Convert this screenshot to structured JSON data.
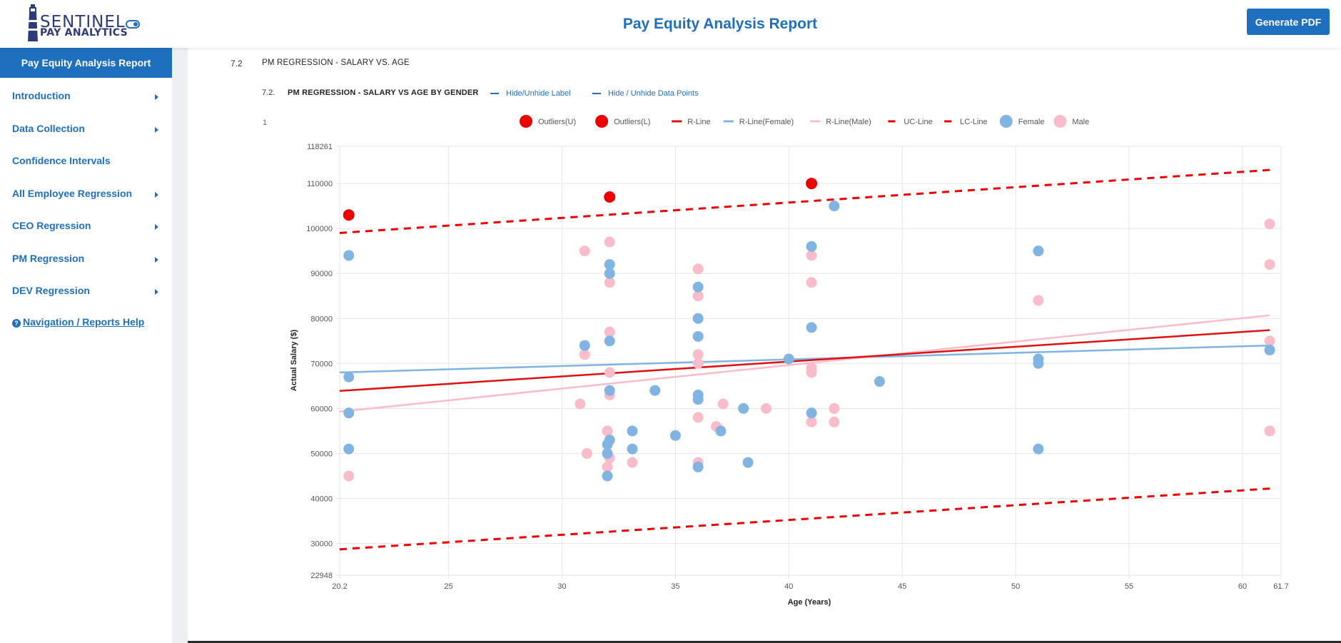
{
  "header": {
    "logo_top": "SENTINEL",
    "logo_bottom": "PAY ANALYTICS",
    "title": "Pay Equity Analysis Report",
    "pdf_button": "Generate PDF"
  },
  "sidebar": {
    "header": "Pay Equity Analysis Report",
    "items": [
      {
        "label": "Introduction",
        "caret": true
      },
      {
        "label": "Data Collection",
        "caret": true
      },
      {
        "label": "Confidence Intervals",
        "caret": false
      },
      {
        "label": "All Employee Regression",
        "caret": true
      },
      {
        "label": "CEO Regression",
        "caret": true
      },
      {
        "label": "PM Regression",
        "caret": true
      },
      {
        "label": "DEV Regression",
        "caret": true
      }
    ],
    "help": "Navigation / Reports Help"
  },
  "section": {
    "number": "7.2",
    "title": "PM REGRESSION - SALARY VS. AGE",
    "sub_number": "7.2.",
    "sub_title": "PM REGRESSION - SALARY VS AGE BY GENDER",
    "hide_label": "Hide/Unhide Label",
    "hide_points": "Hide / Unhide Data Points",
    "figure_number": "1"
  },
  "colors": {
    "accent": "#1f6fbf",
    "outlier": "#ee0000",
    "r_line": "#e01010",
    "female": "#7fb4e3",
    "male": "#f9bccb"
  },
  "chart_data": {
    "type": "scatter",
    "xlabel": "Age (Years)",
    "ylabel": "Actual Salary ($)",
    "xlim": [
      20.2,
      61.7
    ],
    "ylim": [
      22948,
      118261
    ],
    "xticks": [
      {
        "v": 20.2,
        "label": "20.2"
      },
      {
        "v": 25,
        "label": "25"
      },
      {
        "v": 30,
        "label": "30"
      },
      {
        "v": 35,
        "label": "35"
      },
      {
        "v": 40,
        "label": "40"
      },
      {
        "v": 45,
        "label": "45"
      },
      {
        "v": 50,
        "label": "50"
      },
      {
        "v": 55,
        "label": "55"
      },
      {
        "v": 60,
        "label": "60"
      },
      {
        "v": 61.7,
        "label": "61.7"
      }
    ],
    "yticks": [
      {
        "v": 22948,
        "label": "22948"
      },
      {
        "v": 30000,
        "label": "30000"
      },
      {
        "v": 40000,
        "label": "40000"
      },
      {
        "v": 50000,
        "label": "50000"
      },
      {
        "v": 60000,
        "label": "60000"
      },
      {
        "v": 70000,
        "label": "70000"
      },
      {
        "v": 80000,
        "label": "80000"
      },
      {
        "v": 90000,
        "label": "90000"
      },
      {
        "v": 100000,
        "label": "100000"
      },
      {
        "v": 110000,
        "label": "110000"
      },
      {
        "v": 118261,
        "label": "118261"
      }
    ],
    "grid": true,
    "legend_position": "top",
    "legend": [
      {
        "label": "Outliers(U)",
        "kind": "dot",
        "color": "#ee0000"
      },
      {
        "label": "Outliers(L)",
        "kind": "dot",
        "color": "#ee0000"
      },
      {
        "label": "R-Line",
        "kind": "line",
        "color": "#e01010"
      },
      {
        "label": "R-Line(Female)",
        "kind": "line",
        "color": "#7fb4e3"
      },
      {
        "label": "R-Line(Male)",
        "kind": "line",
        "color": "#f9bccb"
      },
      {
        "label": "UC-Line",
        "kind": "dash",
        "color": "#ee0000"
      },
      {
        "label": "LC-Line",
        "kind": "dash",
        "color": "#ee0000"
      },
      {
        "label": "Female",
        "kind": "dot",
        "color": "#7fb4e3"
      },
      {
        "label": "Male",
        "kind": "dot",
        "color": "#f9bccb"
      }
    ],
    "lines": [
      {
        "name": "UC-Line",
        "color": "#ee0000",
        "dashed": true,
        "width": 3,
        "x": [
          20.2,
          61.2
        ],
        "y": [
          99000,
          113000
        ]
      },
      {
        "name": "LC-Line",
        "color": "#ee0000",
        "dashed": true,
        "width": 3,
        "x": [
          20.2,
          61.2
        ],
        "y": [
          28700,
          42200
        ]
      },
      {
        "name": "R-Line(Female)",
        "color": "#7fb4e3",
        "dashed": false,
        "width": 2.5,
        "x": [
          20.2,
          61.2
        ],
        "y": [
          68000,
          74000
        ]
      },
      {
        "name": "R-Line(Male)",
        "color": "#f9bccb",
        "dashed": false,
        "width": 2.5,
        "x": [
          20.2,
          61.2
        ],
        "y": [
          59300,
          80700
        ]
      },
      {
        "name": "R-Line",
        "color": "#e01010",
        "dashed": false,
        "width": 2.5,
        "x": [
          20.2,
          61.2
        ],
        "y": [
          63900,
          77400
        ]
      }
    ],
    "series": [
      {
        "name": "Male",
        "color": "#f9bccb",
        "points": [
          [
            20.6,
            45000
          ],
          [
            31,
            95000
          ],
          [
            31,
            72000
          ],
          [
            30.8,
            61000
          ],
          [
            31.1,
            50000
          ],
          [
            32.1,
            97000
          ],
          [
            32.1,
            88000
          ],
          [
            32.1,
            77000
          ],
          [
            32.1,
            68000
          ],
          [
            32.1,
            63000
          ],
          [
            32,
            55000
          ],
          [
            32.1,
            49000
          ],
          [
            32,
            47000
          ],
          [
            33.1,
            48000
          ],
          [
            36,
            91000
          ],
          [
            36,
            85000
          ],
          [
            36,
            72000
          ],
          [
            36,
            70000
          ],
          [
            36,
            58000
          ],
          [
            36,
            48000
          ],
          [
            36.8,
            56000
          ],
          [
            37.1,
            61000
          ],
          [
            39,
            60000
          ],
          [
            41,
            94000
          ],
          [
            41,
            88000
          ],
          [
            41,
            69000
          ],
          [
            41,
            68000
          ],
          [
            41,
            57000
          ],
          [
            42,
            60000
          ],
          [
            42,
            57000
          ],
          [
            51,
            84000
          ],
          [
            61.2,
            101000
          ],
          [
            61.2,
            92000
          ],
          [
            61.2,
            75000
          ],
          [
            61.2,
            55000
          ]
        ]
      },
      {
        "name": "Female",
        "color": "#7fb4e3",
        "points": [
          [
            20.6,
            94000
          ],
          [
            20.6,
            67000
          ],
          [
            20.6,
            59000
          ],
          [
            20.6,
            51000
          ],
          [
            31,
            74000
          ],
          [
            32.1,
            92000
          ],
          [
            32.1,
            90000
          ],
          [
            32.1,
            75000
          ],
          [
            32.1,
            64000
          ],
          [
            32.1,
            53000
          ],
          [
            32,
            52000
          ],
          [
            32,
            50000
          ],
          [
            32,
            45000
          ],
          [
            33.1,
            55000
          ],
          [
            33.1,
            51000
          ],
          [
            34.1,
            64000
          ],
          [
            35,
            54000
          ],
          [
            36,
            87000
          ],
          [
            36,
            80000
          ],
          [
            36,
            76000
          ],
          [
            36,
            63000
          ],
          [
            36,
            62000
          ],
          [
            36,
            47000
          ],
          [
            37,
            55000
          ],
          [
            38,
            60000
          ],
          [
            38.2,
            48000
          ],
          [
            40,
            71000
          ],
          [
            41,
            96000
          ],
          [
            41,
            78000
          ],
          [
            41,
            59000
          ],
          [
            42,
            105000
          ],
          [
            44,
            66000
          ],
          [
            51,
            95000
          ],
          [
            51,
            71000
          ],
          [
            51,
            70000
          ],
          [
            51,
            51000
          ],
          [
            61.2,
            73000
          ]
        ]
      },
      {
        "name": "Outliers(U)",
        "color": "#ee0000",
        "points": [
          [
            20.6,
            103000
          ],
          [
            32.1,
            107000
          ],
          [
            41,
            110000
          ]
        ]
      }
    ]
  }
}
